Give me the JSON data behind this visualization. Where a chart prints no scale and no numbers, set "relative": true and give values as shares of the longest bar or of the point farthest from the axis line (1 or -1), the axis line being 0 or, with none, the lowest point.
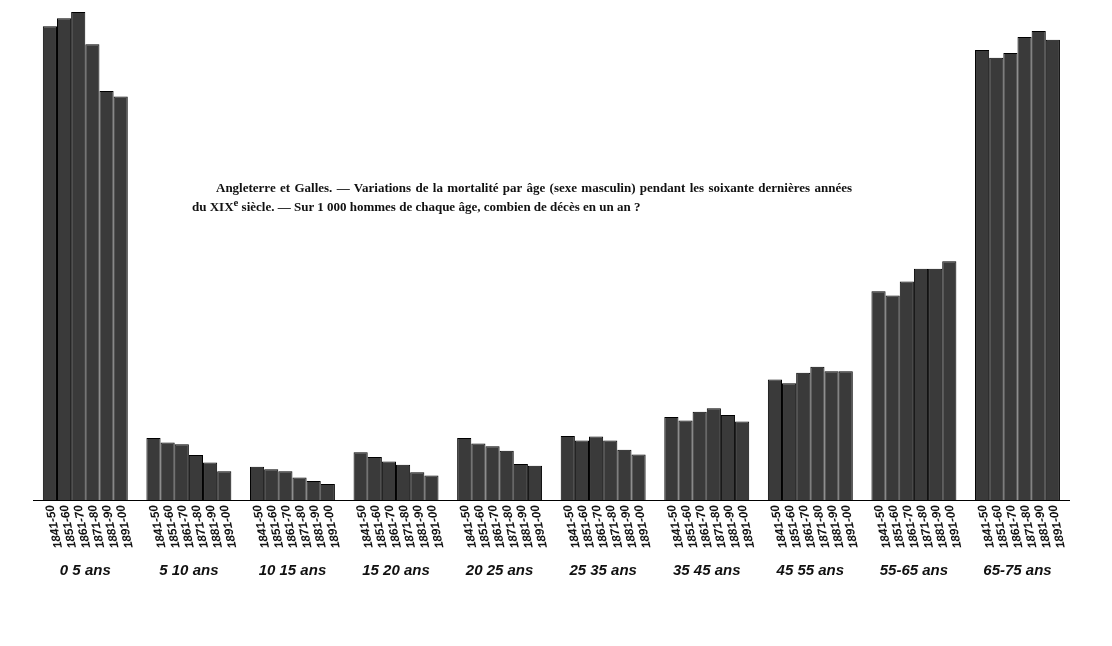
{
  "chart_data": {
    "type": "bar",
    "relative": true,
    "title": "Angleterre et Galles. — Variations de la mortalité par âge (sexe masculin) pendant les soixante dernières années du XIX$^{e}$ siècle. — Sur 1 000 hommes de chaque âge, combien de décès en un an ?",
    "categories": [
      "0 5 ans",
      "5 10 ans",
      "10 15 ans",
      "15 20 ans",
      "20 25 ans",
      "25 35 ans",
      "35 45 ans",
      "45 55 ans",
      "55-65 ans",
      "65-75 ans"
    ],
    "series": [
      {
        "name": "1841-50",
        "color": "#3a3a3a",
        "values": [
          0.971,
          0.127,
          0.068,
          0.098,
          0.127,
          0.131,
          0.17,
          0.247,
          0.428,
          0.922
        ]
      },
      {
        "name": "1851-60",
        "color": "#3a3a3a",
        "values": [
          0.987,
          0.118,
          0.063,
          0.088,
          0.116,
          0.122,
          0.163,
          0.239,
          0.419,
          0.906
        ]
      },
      {
        "name": "1861-70",
        "color": "#3a3a3a",
        "values": [
          1,
          0.114,
          0.059,
          0.079,
          0.11,
          0.13,
          0.181,
          0.261,
          0.448,
          0.916
        ]
      },
      {
        "name": "1871-80",
        "color": "#3a3a3a",
        "values": [
          0.934,
          0.092,
          0.046,
          0.072,
          0.101,
          0.122,
          0.188,
          0.273,
          0.474,
          0.949
        ]
      },
      {
        "name": "1881-90",
        "color": "#3a3a3a",
        "values": [
          0.838,
          0.077,
          0.039,
          0.057,
          0.074,
          0.103,
          0.174,
          0.264,
          0.474,
          0.961
        ]
      },
      {
        "name": "1891-00",
        "color": "#3a3a3a",
        "values": [
          0.827,
          0.059,
          0.033,
          0.05,
          0.07,
          0.093,
          0.161,
          0.264,
          0.489,
          0.943
        ]
      }
    ]
  }
}
